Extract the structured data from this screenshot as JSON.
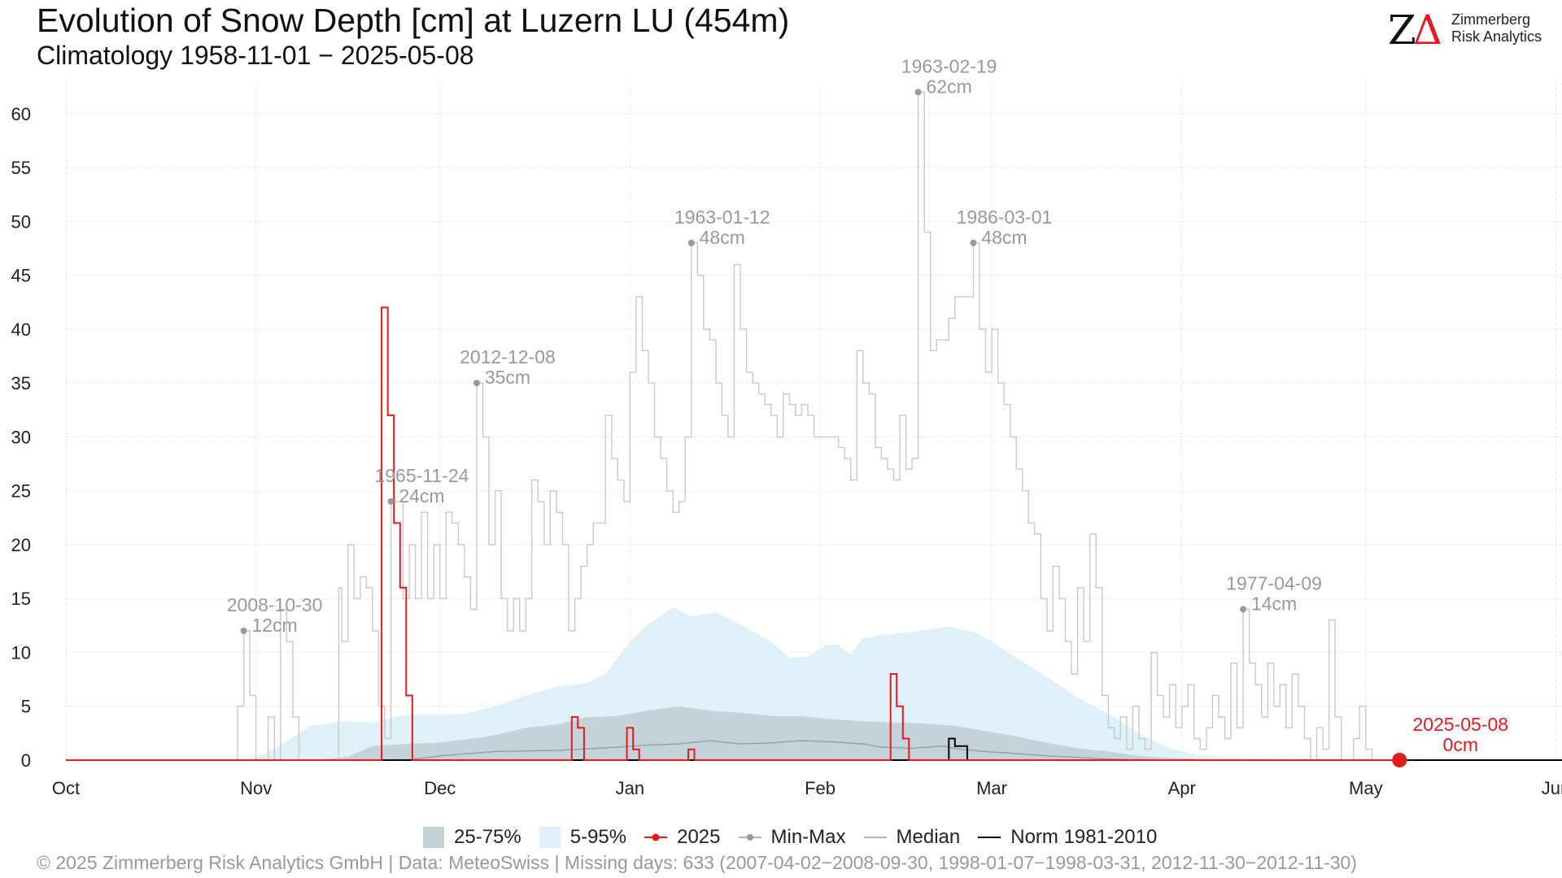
{
  "header": {
    "title": "Evolution of Snow Depth [cm] at Luzern  LU (454m)",
    "subtitle": "Climatology 1958-11-01 − 2025-05-08"
  },
  "logo": {
    "mark_z": "Z",
    "mark_delta": "Δ",
    "line1": "Zimmerberg",
    "line2": "Risk Analytics"
  },
  "legend": {
    "band_iqr": "25-75%",
    "band_90": "5-95%",
    "current": "2025",
    "minmax": "Min-Max",
    "median": "Median",
    "norm": "Norm 1981-2010"
  },
  "footer": {
    "text": "©  2025 Zimmerberg Risk Analytics GmbH | Data: MeteoSwiss | Missing days: 633 (2007-04-02−2008-09-30, 1998-01-07−1998-03-31, 2012-11-30−2012-11-30)"
  },
  "colors": {
    "band_iqr": "#c4d3d9",
    "band_90": "#dff1f8",
    "current": "#e41a1c",
    "minmax": "#c8c8c8",
    "median": "#8fa0a6",
    "norm": "#000000",
    "annotation": "#999999"
  },
  "chart_data": {
    "type": "line",
    "ylim": [
      0,
      63
    ],
    "yticks": [
      0,
      5,
      10,
      15,
      20,
      25,
      30,
      35,
      40,
      45,
      50,
      55,
      60
    ],
    "x_domain_days": [
      0,
      244
    ],
    "x_ticks": [
      {
        "label": "Oct",
        "day": 0
      },
      {
        "label": "Nov",
        "day": 31
      },
      {
        "label": "Dec",
        "day": 61
      },
      {
        "label": "Jan",
        "day": 92
      },
      {
        "label": "Feb",
        "day": 123
      },
      {
        "label": "Mar",
        "day": 151
      },
      {
        "label": "Apr",
        "day": 182
      },
      {
        "label": "May",
        "day": 212
      },
      {
        "label": "Jun",
        "day": 243
      }
    ],
    "grid": true,
    "legend_position": "bottom",
    "max_series": [
      [
        0,
        0
      ],
      [
        27,
        0
      ],
      [
        28,
        5
      ],
      [
        29,
        12
      ],
      [
        30,
        6
      ],
      [
        31,
        0
      ],
      [
        32,
        0
      ],
      [
        33,
        4
      ],
      [
        34,
        0
      ],
      [
        35,
        14
      ],
      [
        36,
        11
      ],
      [
        37,
        4
      ],
      [
        38,
        0
      ],
      [
        44,
        0
      ],
      [
        44.5,
        16
      ],
      [
        45,
        11
      ],
      [
        46,
        20
      ],
      [
        47,
        15
      ],
      [
        48,
        17
      ],
      [
        49,
        16
      ],
      [
        50,
        12
      ],
      [
        51,
        5
      ],
      [
        52,
        2
      ],
      [
        53,
        24
      ],
      [
        54,
        24
      ],
      [
        55,
        15
      ],
      [
        56,
        20
      ],
      [
        57,
        15
      ],
      [
        58,
        23
      ],
      [
        59,
        15
      ],
      [
        60,
        20
      ],
      [
        61,
        15
      ],
      [
        62,
        23
      ],
      [
        63,
        22
      ],
      [
        64,
        20
      ],
      [
        65,
        17
      ],
      [
        66,
        14
      ],
      [
        67,
        35
      ],
      [
        68,
        30
      ],
      [
        69,
        20
      ],
      [
        70,
        25
      ],
      [
        71,
        15
      ],
      [
        72,
        12
      ],
      [
        73,
        15
      ],
      [
        74,
        12
      ],
      [
        75,
        15
      ],
      [
        76,
        26
      ],
      [
        77,
        24
      ],
      [
        78,
        20
      ],
      [
        79,
        25
      ],
      [
        80,
        23
      ],
      [
        81,
        20
      ],
      [
        82,
        12
      ],
      [
        83,
        15
      ],
      [
        84,
        18
      ],
      [
        85,
        20
      ],
      [
        86,
        22
      ],
      [
        87,
        22
      ],
      [
        88,
        32
      ],
      [
        89,
        28
      ],
      [
        90,
        26
      ],
      [
        91,
        24
      ],
      [
        92,
        36
      ],
      [
        93,
        43
      ],
      [
        94,
        38
      ],
      [
        95,
        35
      ],
      [
        96,
        30
      ],
      [
        97,
        28
      ],
      [
        98,
        25
      ],
      [
        99,
        23
      ],
      [
        100,
        24
      ],
      [
        101,
        30
      ],
      [
        102,
        48
      ],
      [
        103,
        45
      ],
      [
        104,
        40
      ],
      [
        105,
        39
      ],
      [
        106,
        35
      ],
      [
        107,
        32
      ],
      [
        108,
        30
      ],
      [
        109,
        46
      ],
      [
        110,
        40
      ],
      [
        111,
        36
      ],
      [
        112,
        35
      ],
      [
        113,
        34
      ],
      [
        114,
        33
      ],
      [
        115,
        32
      ],
      [
        116,
        30
      ],
      [
        117,
        34
      ],
      [
        118,
        33
      ],
      [
        119,
        32
      ],
      [
        120,
        33
      ],
      [
        121,
        32
      ],
      [
        122,
        30
      ],
      [
        125,
        30
      ],
      [
        126,
        29
      ],
      [
        127,
        28
      ],
      [
        128,
        26
      ],
      [
        129,
        38
      ],
      [
        130,
        35
      ],
      [
        131,
        34
      ],
      [
        132,
        29
      ],
      [
        133,
        28
      ],
      [
        134,
        27
      ],
      [
        135,
        26
      ],
      [
        136,
        32
      ],
      [
        137,
        27
      ],
      [
        138,
        28
      ],
      [
        139,
        62
      ],
      [
        140,
        49
      ],
      [
        141,
        38
      ],
      [
        142,
        39
      ],
      [
        143,
        39
      ],
      [
        144,
        41
      ],
      [
        145,
        43
      ],
      [
        147,
        43
      ],
      [
        148,
        48
      ],
      [
        149,
        40
      ],
      [
        150,
        36
      ],
      [
        151,
        40
      ],
      [
        152,
        35
      ],
      [
        153,
        33
      ],
      [
        154,
        30
      ],
      [
        155,
        27
      ],
      [
        156,
        25
      ],
      [
        157,
        22
      ],
      [
        158,
        21
      ],
      [
        159,
        15
      ],
      [
        160,
        12
      ],
      [
        161,
        18
      ],
      [
        162,
        15
      ],
      [
        163,
        11
      ],
      [
        164,
        8
      ],
      [
        165,
        16
      ],
      [
        166,
        11
      ],
      [
        167,
        21
      ],
      [
        168,
        16
      ],
      [
        169,
        6
      ],
      [
        170,
        3
      ],
      [
        171,
        2
      ],
      [
        172,
        4
      ],
      [
        173,
        1
      ],
      [
        174,
        5
      ],
      [
        175,
        2
      ],
      [
        176,
        1
      ],
      [
        177,
        10
      ],
      [
        178,
        6
      ],
      [
        179,
        4
      ],
      [
        180,
        7
      ],
      [
        181,
        3
      ],
      [
        182,
        5
      ],
      [
        183,
        7
      ],
      [
        184,
        2
      ],
      [
        185,
        1
      ],
      [
        186,
        3
      ],
      [
        187,
        6
      ],
      [
        188,
        4
      ],
      [
        189,
        2
      ],
      [
        190,
        9
      ],
      [
        191,
        3
      ],
      [
        192,
        14
      ],
      [
        193,
        9
      ],
      [
        194,
        7
      ],
      [
        195,
        4
      ],
      [
        196,
        9
      ],
      [
        197,
        5
      ],
      [
        198,
        7
      ],
      [
        199,
        3
      ],
      [
        200,
        8
      ],
      [
        201,
        5
      ],
      [
        202,
        2
      ],
      [
        203,
        0
      ],
      [
        204,
        3
      ],
      [
        205,
        1
      ],
      [
        206,
        13
      ],
      [
        207,
        4
      ],
      [
        208,
        0
      ],
      [
        210,
        2
      ],
      [
        211,
        5
      ],
      [
        212,
        1
      ],
      [
        213,
        0
      ],
      [
        244,
        0
      ]
    ],
    "series": [
      {
        "name": "2025",
        "type": "step",
        "points": [
          [
            0,
            0
          ],
          [
            51,
            0
          ],
          [
            51.5,
            42
          ],
          [
            52.5,
            32
          ],
          [
            53.5,
            22
          ],
          [
            54.5,
            16
          ],
          [
            55.5,
            6
          ],
          [
            56.5,
            0
          ],
          [
            82,
            0
          ],
          [
            82.5,
            4
          ],
          [
            83.5,
            3
          ],
          [
            84.5,
            0
          ],
          [
            91,
            0
          ],
          [
            91.5,
            3
          ],
          [
            92.5,
            1
          ],
          [
            93.5,
            0
          ],
          [
            101,
            0
          ],
          [
            101.5,
            1
          ],
          [
            102.5,
            0
          ],
          [
            134,
            0
          ],
          [
            134.5,
            8
          ],
          [
            135.5,
            5
          ],
          [
            136.5,
            2
          ],
          [
            137.5,
            0
          ],
          [
            217.5,
            0
          ]
        ]
      },
      {
        "name": "Median",
        "points": [
          [
            0,
            0
          ],
          [
            40,
            0
          ],
          [
            55,
            0
          ],
          [
            60,
            0.3
          ],
          [
            61,
            0.4
          ],
          [
            70,
            0.8
          ],
          [
            80,
            0.9
          ],
          [
            90,
            1.2
          ],
          [
            95,
            1.4
          ],
          [
            100,
            1.5
          ],
          [
            105,
            1.8
          ],
          [
            110,
            1.5
          ],
          [
            115,
            1.6
          ],
          [
            120,
            1.8
          ],
          [
            125,
            1.7
          ],
          [
            130,
            1.5
          ],
          [
            133,
            1.2
          ],
          [
            138,
            1.1
          ],
          [
            143,
            1.3
          ],
          [
            146,
            1.0
          ],
          [
            150,
            0.8
          ],
          [
            155,
            0.6
          ],
          [
            160,
            0.4
          ],
          [
            170,
            0.1
          ],
          [
            180,
            0
          ]
        ]
      },
      {
        "name": "Norm 1981-2010",
        "type": "step",
        "points": [
          [
            0,
            0
          ],
          [
            144,
            0
          ],
          [
            144,
            2
          ],
          [
            145,
            2
          ],
          [
            145,
            1.3
          ],
          [
            147,
            1.3
          ],
          [
            147,
            0
          ],
          [
            244,
            0
          ]
        ]
      }
    ],
    "band_5_95": {
      "upper": [
        [
          30,
          0
        ],
        [
          33,
          0.7
        ],
        [
          36,
          1.8
        ],
        [
          40,
          3.2
        ],
        [
          45,
          3.6
        ],
        [
          50,
          3.5
        ],
        [
          55,
          4.2
        ],
        [
          60,
          4.2
        ],
        [
          65,
          4.3
        ],
        [
          70,
          5
        ],
        [
          75,
          6
        ],
        [
          80,
          6.8
        ],
        [
          85,
          7.2
        ],
        [
          88,
          8
        ],
        [
          90,
          9.5
        ],
        [
          92,
          11
        ],
        [
          95,
          12.6
        ],
        [
          99,
          14.2
        ],
        [
          102,
          13.3
        ],
        [
          106,
          13.7
        ],
        [
          110,
          12.6
        ],
        [
          115,
          11
        ],
        [
          118,
          9.5
        ],
        [
          121,
          9.6
        ],
        [
          124,
          10.7
        ],
        [
          126,
          10.7
        ],
        [
          128,
          9.8
        ],
        [
          130,
          11.3
        ],
        [
          133,
          11.6
        ],
        [
          138,
          11.9
        ],
        [
          144,
          12.4
        ],
        [
          148,
          11.9
        ],
        [
          151,
          11
        ],
        [
          155,
          9.5
        ],
        [
          160,
          7.7
        ],
        [
          165,
          5.8
        ],
        [
          170,
          4.3
        ],
        [
          175,
          2.5
        ],
        [
          180,
          1.1
        ],
        [
          185,
          0.4
        ],
        [
          190,
          0.2
        ],
        [
          200,
          0.1
        ],
        [
          210,
          0
        ]
      ],
      "lower": [
        [
          30,
          0
        ],
        [
          210,
          0
        ]
      ]
    },
    "band_25_75": {
      "upper": [
        [
          40,
          0
        ],
        [
          46,
          0.3
        ],
        [
          50,
          1.3
        ],
        [
          55,
          1.5
        ],
        [
          60,
          1.6
        ],
        [
          65,
          1.9
        ],
        [
          70,
          2.3
        ],
        [
          75,
          3
        ],
        [
          80,
          3.3
        ],
        [
          85,
          4
        ],
        [
          90,
          4.1
        ],
        [
          95,
          4.6
        ],
        [
          100,
          5
        ],
        [
          105,
          4.6
        ],
        [
          110,
          4.4
        ],
        [
          115,
          4.1
        ],
        [
          120,
          4.1
        ],
        [
          125,
          3.8
        ],
        [
          130,
          3.6
        ],
        [
          135,
          3.5
        ],
        [
          140,
          3.4
        ],
        [
          145,
          3.2
        ],
        [
          150,
          2.7
        ],
        [
          155,
          2.2
        ],
        [
          160,
          1.6
        ],
        [
          165,
          1.1
        ],
        [
          170,
          0.8
        ],
        [
          175,
          0.4
        ],
        [
          180,
          0.2
        ],
        [
          190,
          0
        ]
      ],
      "lower": [
        [
          40,
          0
        ],
        [
          190,
          0
        ]
      ]
    },
    "annotations": [
      {
        "date": "2008-10-30",
        "value": 12,
        "unit": "cm",
        "day": 29
      },
      {
        "date": "1965-11-24",
        "value": 24,
        "unit": "cm",
        "day": 53
      },
      {
        "date": "2012-12-08",
        "value": 35,
        "unit": "cm",
        "day": 67
      },
      {
        "date": "1963-01-12",
        "value": 48,
        "unit": "cm",
        "day": 102
      },
      {
        "date": "1963-02-19",
        "value": 62,
        "unit": "cm",
        "day": 139
      },
      {
        "date": "1986-03-01",
        "value": 48,
        "unit": "cm",
        "day": 148
      },
      {
        "date": "1977-04-09",
        "value": 14,
        "unit": "cm",
        "day": 192
      }
    ],
    "current_marker": {
      "date": "2025-05-08",
      "value": 0,
      "unit": "cm",
      "day": 217.5
    }
  }
}
